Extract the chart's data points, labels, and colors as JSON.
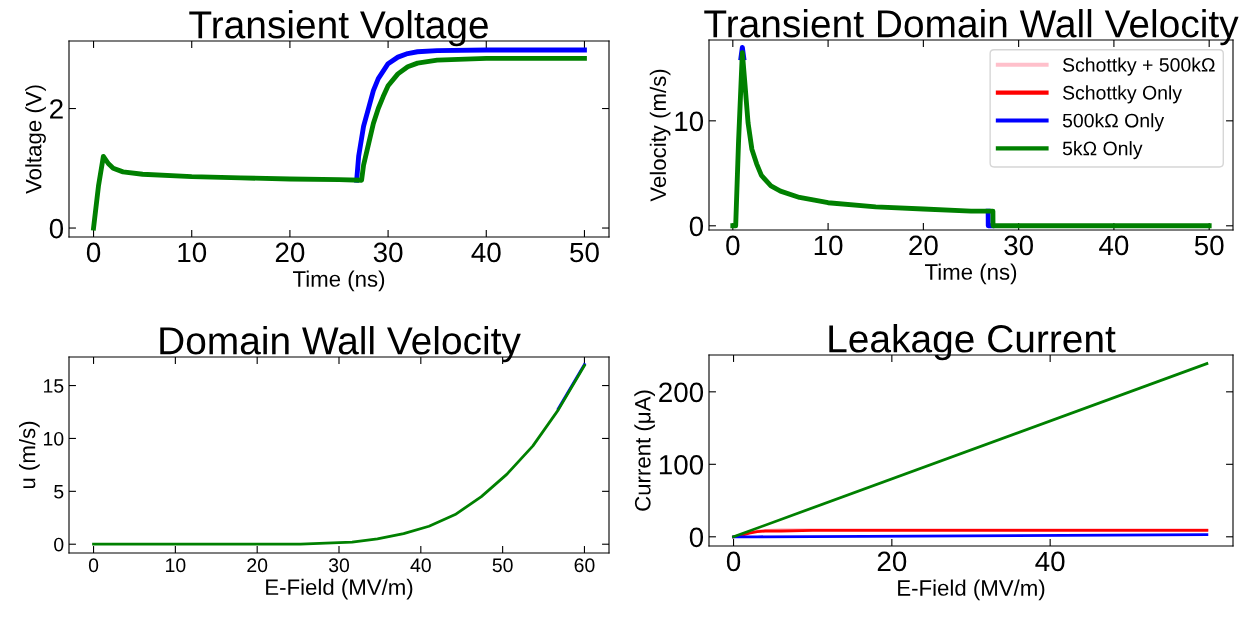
{
  "chart_data": [
    {
      "type": "line",
      "title": "Transient Voltage",
      "xlabel": "Time (ns)",
      "ylabel": "Voltage (V)",
      "xlim": [
        -2.5,
        52.5
      ],
      "xticks": [
        0,
        10,
        20,
        30,
        40,
        50
      ],
      "ylim": [
        -0.15,
        3.13
      ],
      "yticks": [
        0,
        2
      ],
      "grid": false,
      "series": [
        {
          "color": "#0000ff",
          "x": [
            26.8,
            27,
            27.5,
            28,
            28.5,
            29,
            30,
            31,
            32,
            33,
            35,
            40,
            45,
            50
          ],
          "values": [
            0.8,
            1.2,
            1.7,
            2.0,
            2.3,
            2.5,
            2.75,
            2.86,
            2.92,
            2.95,
            2.97,
            2.98,
            2.98,
            2.98
          ]
        },
        {
          "color": "#008000",
          "x": [
            0,
            0.5,
            1,
            1.5,
            2,
            3,
            5,
            10,
            15,
            20,
            25,
            27.3,
            27.5,
            28,
            28.5,
            29,
            29.5,
            30,
            31,
            32,
            33,
            35,
            40,
            45,
            50
          ],
          "values": [
            0,
            0.7,
            1.2,
            1.08,
            1.0,
            0.94,
            0.9,
            0.86,
            0.84,
            0.82,
            0.81,
            0.8,
            1.05,
            1.4,
            1.75,
            2.0,
            2.2,
            2.38,
            2.58,
            2.7,
            2.76,
            2.81,
            2.84,
            2.84,
            2.84
          ]
        }
      ]
    },
    {
      "type": "line",
      "title": "Transient Domain Wall Velocity",
      "xlabel": "Time (ns)",
      "ylabel": "Velocity (m/s)",
      "xlim": [
        -2.5,
        52.5
      ],
      "xticks": [
        0,
        10,
        20,
        30,
        40,
        50
      ],
      "ylim": [
        -0.4,
        17.7
      ],
      "yticks": [
        0,
        10
      ],
      "grid": false,
      "legend": "top right",
      "series": [
        {
          "name": "Schottky + 500kΩ",
          "color": "#ffc0cb"
        },
        {
          "name": "Schottky Only",
          "color": "#ff0000"
        },
        {
          "name": "500kΩ Only",
          "color": "#0000ff",
          "x": [
            0.85,
            1.0,
            1.15,
            null,
            26.8,
            26.81,
            27.2
          ],
          "values": [
            16,
            17,
            16,
            null,
            1.4,
            0,
            0
          ]
        },
        {
          "name": "5kΩ Only",
          "color": "#008000",
          "x": [
            0,
            0.3,
            0.6,
            1.0,
            1.3,
            1.6,
            2,
            2.5,
            3,
            4,
            5,
            7,
            10,
            15,
            20,
            25,
            27.3,
            27.31,
            30,
            40,
            50
          ],
          "values": [
            0,
            0,
            8,
            16.5,
            13.2,
            9.8,
            7.3,
            5.9,
            4.8,
            3.8,
            3.3,
            2.7,
            2.2,
            1.8,
            1.6,
            1.4,
            1.4,
            0,
            0,
            0,
            0
          ]
        }
      ]
    },
    {
      "type": "line",
      "title": "Domain Wall Velocity",
      "xlabel": "E-Field (MV/m)",
      "ylabel": "u (m/s)",
      "xlim": [
        -3,
        63
      ],
      "xticks": [
        0,
        10,
        20,
        30,
        40,
        50,
        60
      ],
      "ylim": [
        -0.83,
        17.7
      ],
      "yticks": [
        0,
        5,
        10,
        15
      ],
      "grid": false,
      "series": [
        {
          "color": "#0000ff",
          "x": [
            56.8,
            60
          ],
          "values": [
            12.8,
            17
          ]
        },
        {
          "color": "#008000",
          "x": [
            0,
            3.2,
            6.3,
            9.5,
            12.6,
            15.8,
            18.9,
            22.1,
            25.3,
            28.4,
            31.6,
            34.7,
            37.9,
            41,
            44.2,
            47.4,
            50.5,
            53.7,
            56.8,
            60
          ],
          "values": [
            0,
            0,
            0,
            0,
            0,
            0,
            0,
            0,
            0,
            0.1,
            0.2,
            0.5,
            1,
            1.7,
            2.8,
            4.5,
            6.6,
            9.3,
            12.7,
            16.9
          ]
        }
      ]
    },
    {
      "type": "line",
      "title": "Leakage Current",
      "xlabel": "E-Field (MV/m)",
      "ylabel": "Current (μA)",
      "xlim": [
        -3.1,
        63.1
      ],
      "xticks": [
        0,
        20,
        40
      ],
      "ylim": [
        -12.7,
        250.8
      ],
      "yticks": [
        0,
        100,
        200
      ],
      "grid": false,
      "series": [
        {
          "color": "#ffc0cb",
          "x": [
            2,
            3,
            4,
            6,
            10,
            20,
            40,
            59.8
          ],
          "values": [
            6,
            8,
            9,
            10,
            10,
            10,
            10,
            10
          ]
        },
        {
          "color": "#ff0000",
          "x": [
            0,
            1,
            2,
            3,
            4,
            6,
            10,
            20,
            40,
            59.8
          ],
          "values": [
            0,
            2,
            5,
            7,
            8,
            8,
            9,
            9,
            9,
            9
          ]
        },
        {
          "color": "#0000ff",
          "x": [
            0,
            3,
            59.8
          ],
          "values": [
            0,
            0,
            3
          ]
        },
        {
          "color": "#008000",
          "x": [
            0,
            59.8
          ],
          "values": [
            0,
            239
          ]
        }
      ]
    }
  ]
}
